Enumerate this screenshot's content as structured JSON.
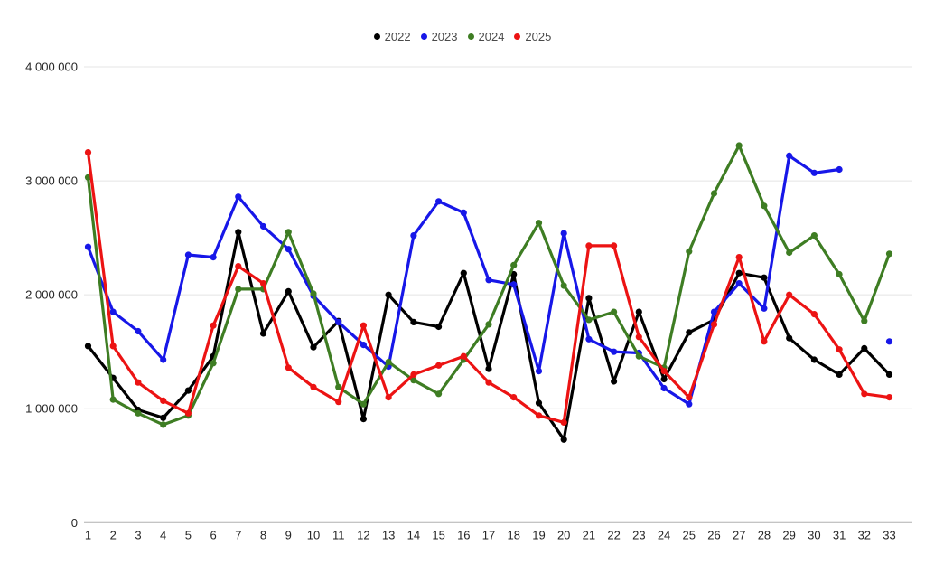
{
  "legend": {
    "items": [
      {
        "label": "2022",
        "color": "#000000"
      },
      {
        "label": "2023",
        "color": "#1717e8"
      },
      {
        "label": "2024",
        "color": "#3e7d23"
      },
      {
        "label": "2025",
        "color": "#ec1313"
      }
    ]
  },
  "y_axis": {
    "tick_labels": [
      "4 000 000",
      "3 000 000",
      "2 000 000",
      "1 000 000",
      "0"
    ]
  },
  "x_axis": {
    "tick_labels": [
      "1",
      "2",
      "3",
      "4",
      "5",
      "6",
      "7",
      "8",
      "9",
      "10",
      "11",
      "12",
      "13",
      "14",
      "15",
      "16",
      "17",
      "18",
      "19",
      "20",
      "21",
      "22",
      "23",
      "24",
      "25",
      "26",
      "27",
      "28",
      "29",
      "30",
      "31",
      "32",
      "33"
    ]
  },
  "chart_data": {
    "type": "line",
    "x": [
      1,
      2,
      3,
      4,
      5,
      6,
      7,
      8,
      9,
      10,
      11,
      12,
      13,
      14,
      15,
      16,
      17,
      18,
      19,
      20,
      21,
      22,
      23,
      24,
      25,
      26,
      27,
      28,
      29,
      30,
      31,
      32,
      33
    ],
    "series": [
      {
        "name": "2022",
        "color": "#000000",
        "values": [
          1550000,
          1270000,
          990000,
          920000,
          1160000,
          1460000,
          2550000,
          1660000,
          2030000,
          1540000,
          1770000,
          910000,
          2000000,
          1760000,
          1720000,
          2190000,
          1350000,
          2180000,
          1050000,
          730000,
          1970000,
          1240000,
          1850000,
          1260000,
          1670000,
          1780000,
          2190000,
          2150000,
          1620000,
          1430000,
          1300000,
          1530000,
          1300000
        ]
      },
      {
        "name": "2023",
        "color": "#1717e8",
        "values": [
          2420000,
          1850000,
          1680000,
          1430000,
          2350000,
          2330000,
          2860000,
          2600000,
          2400000,
          1990000,
          1760000,
          1560000,
          1370000,
          2520000,
          2820000,
          2720000,
          2130000,
          2090000,
          1330000,
          2540000,
          1610000,
          1500000,
          1490000,
          1180000,
          1040000,
          1850000,
          2100000,
          1880000,
          3220000,
          3070000,
          3100000,
          null,
          1590000
        ]
      },
      {
        "name": "2024",
        "color": "#3e7d23",
        "values": [
          3030000,
          1080000,
          960000,
          860000,
          940000,
          1400000,
          2050000,
          2050000,
          2550000,
          2010000,
          1190000,
          1040000,
          1410000,
          1250000,
          1130000,
          1430000,
          1740000,
          2260000,
          2630000,
          2080000,
          1780000,
          1850000,
          1460000,
          1360000,
          2380000,
          2890000,
          3310000,
          2780000,
          2370000,
          2520000,
          2180000,
          1770000,
          2360000
        ]
      },
      {
        "name": "2025",
        "color": "#ec1313",
        "values": [
          3250000,
          1550000,
          1230000,
          1070000,
          960000,
          1730000,
          2250000,
          2100000,
          1360000,
          1190000,
          1060000,
          1730000,
          1100000,
          1300000,
          1380000,
          1460000,
          1230000,
          1100000,
          940000,
          880000,
          2430000,
          2430000,
          1630000,
          1330000,
          1100000,
          1740000,
          2330000,
          1590000,
          2000000,
          1830000,
          1520000,
          1130000,
          1100000
        ]
      }
    ],
    "title": "",
    "xlabel": "",
    "ylabel": "",
    "ylim": [
      0,
      4000000
    ],
    "grid": true,
    "legend_position": "top"
  }
}
